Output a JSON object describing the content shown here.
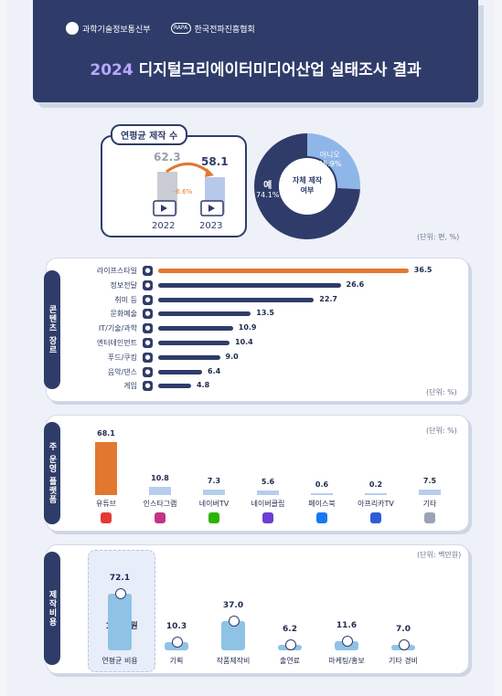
{
  "header": {
    "logo1": "과학기술정보통신부",
    "logo2": "한국전파진흥협회",
    "logo2_mark": "RAPA",
    "title_year": "2024",
    "title_rest": "디지털크리에이터미디어산업 실태조사 결과"
  },
  "production": {
    "label": "연평균 제작 수",
    "year_a": "2022",
    "year_b": "2023",
    "value_a": "62.3",
    "value_b": "58.1",
    "change": "-6.6%",
    "unit": "(단위: 편, %)"
  },
  "self_production_pie": {
    "center_label_1": "자체 제작",
    "center_label_2": "여부",
    "yes_label": "예",
    "yes_value": "74.1%",
    "no_label": "아니오",
    "no_value": "25.9%",
    "yes_pct": 74.1,
    "colors": {
      "yes": "#2f3c6a",
      "no": "#8fb6e8"
    }
  },
  "genre": {
    "tab": "콘텐츠 장르",
    "unit": "(단위: %)",
    "items": [
      {
        "label": "라이프스타일",
        "value": 36.5,
        "text": "36.5",
        "icon": "home-icon"
      },
      {
        "label": "정보전달",
        "value": 26.6,
        "text": "26.6",
        "icon": "info-icon"
      },
      {
        "label": "취미 등",
        "value": 22.7,
        "text": "22.7",
        "icon": "hobby-icon"
      },
      {
        "label": "문화예술",
        "value": 13.5,
        "text": "13.5",
        "icon": "art-icon"
      },
      {
        "label": "IT/기술/과학",
        "value": 10.9,
        "text": "10.9",
        "icon": "tech-icon"
      },
      {
        "label": "엔터테인먼트",
        "value": 10.4,
        "text": "10.4",
        "icon": "entertainment-icon"
      },
      {
        "label": "푸드/쿠킹",
        "value": 9.0,
        "text": "9.0",
        "icon": "food-icon"
      },
      {
        "label": "음악/댄스",
        "value": 6.4,
        "text": "6.4",
        "icon": "music-icon"
      },
      {
        "label": "게임",
        "value": 4.8,
        "text": "4.8",
        "icon": "game-icon"
      }
    ],
    "highlight_color": "#e2782f",
    "bar_color": "#2f3c6a"
  },
  "platform": {
    "tab": "주 운영 플랫폼",
    "unit": "(단위: %)",
    "items": [
      {
        "label": "유튜브",
        "value": 68.1,
        "text": "68.1",
        "icon": "youtube-icon",
        "color": "#e53935"
      },
      {
        "label": "인스타그램",
        "value": 10.8,
        "text": "10.8",
        "icon": "instagram-icon",
        "color": "#c13584"
      },
      {
        "label": "네이버TV",
        "value": 7.3,
        "text": "7.3",
        "icon": "navertv-icon",
        "color": "#2db400"
      },
      {
        "label": "네이버클립",
        "value": 5.6,
        "text": "5.6",
        "icon": "naverclip-icon",
        "color": "#6a3fd1"
      },
      {
        "label": "페이스북",
        "value": 0.6,
        "text": "0.6",
        "icon": "facebook-icon",
        "color": "#1877f2"
      },
      {
        "label": "아프리카TV",
        "value": 0.2,
        "text": "0.2",
        "icon": "afreecatv-icon",
        "color": "#2f5bd8"
      },
      {
        "label": "기타",
        "value": 7.5,
        "text": "7.5",
        "icon": "etc-icon",
        "color": "#9aa3b5"
      }
    ],
    "highlight_color": "#e2782f",
    "bar_color": "#aac4ea"
  },
  "cost": {
    "tab": "제작비용",
    "unit": "(단위: 백만원)",
    "per_item_1": "편당",
    "per_item_2": "124만원",
    "items": [
      {
        "label": "연평균 비용",
        "value": 72.1,
        "text": "72.1"
      },
      {
        "label": "기획",
        "value": 10.3,
        "text": "10.3"
      },
      {
        "label": "작품제작비",
        "value": 37.0,
        "text": "37.0"
      },
      {
        "label": "출연료",
        "value": 6.2,
        "text": "6.2"
      },
      {
        "label": "마케팅/홍보",
        "value": 11.6,
        "text": "11.6"
      },
      {
        "label": "기타 경비",
        "value": 7.0,
        "text": "7.0"
      }
    ],
    "coin_color": "#8fc3e6"
  },
  "chart_data": [
    {
      "type": "bar",
      "categories": [
        "2022",
        "2023"
      ],
      "values": [
        62.3,
        58.1
      ],
      "title": "연평균 제작 수",
      "change": "-6.6%"
    },
    {
      "type": "pie",
      "categories": [
        "예",
        "아니오"
      ],
      "values": [
        74.1,
        25.9
      ],
      "title": "자체 제작 여부"
    },
    {
      "type": "bar",
      "title": "콘텐츠 장르",
      "categories": [
        "라이프스타일",
        "정보전달",
        "취미 등",
        "문화예술",
        "IT/기술/과학",
        "엔터테인먼트",
        "푸드/쿠킹",
        "음악/댄스",
        "게임"
      ],
      "values": [
        36.5,
        26.6,
        22.7,
        13.5,
        10.9,
        10.4,
        9.0,
        6.4,
        4.8
      ]
    },
    {
      "type": "bar",
      "title": "주 운영 플랫폼",
      "categories": [
        "유튜브",
        "인스타그램",
        "네이버TV",
        "네이버클립",
        "페이스북",
        "아프리카TV",
        "기타"
      ],
      "values": [
        68.1,
        10.8,
        7.3,
        5.6,
        0.6,
        0.2,
        7.5
      ]
    },
    {
      "type": "bar",
      "title": "제작비용",
      "categories": [
        "연평균 비용",
        "기획",
        "작품제작비",
        "출연료",
        "마케팅/홍보",
        "기타 경비"
      ],
      "values": [
        72.1,
        10.3,
        37.0,
        6.2,
        11.6,
        7.0
      ]
    }
  ]
}
